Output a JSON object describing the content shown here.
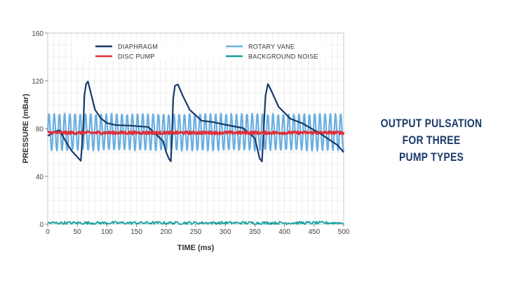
{
  "side_title": {
    "line1": "OUTPUT PULSATION",
    "line2": "FOR THREE",
    "line3": "PUMP TYPES"
  },
  "colors": {
    "diaphragm": "#173a6a",
    "rotary_vane": "#6aaee0",
    "disc_pump": "#e0303a",
    "background_noise": "#12a0a0",
    "title": "#1b3a6b",
    "grid": "#e2e2e2",
    "axis_text": "#444444"
  },
  "chart_data": {
    "type": "line",
    "xlabel": "TIME (ms)",
    "ylabel": "PRESSURE (mBar)",
    "xlim": [
      0,
      500
    ],
    "ylim": [
      0,
      160
    ],
    "xticks": [
      0,
      50,
      100,
      150,
      200,
      250,
      300,
      350,
      400,
      450,
      500
    ],
    "yticks": [
      0,
      40,
      80,
      120,
      160
    ],
    "grid": true,
    "legend_position": "top",
    "series": [
      {
        "name": "DIAPHRAGM",
        "color": "#173a6a",
        "x": [
          0,
          10,
          20,
          30,
          40,
          50,
          56,
          60,
          62,
          65,
          68,
          72,
          80,
          90,
          100,
          115,
          140,
          170,
          195,
          200,
          205,
          208,
          210,
          212,
          215,
          220,
          228,
          240,
          260,
          280,
          300,
          330,
          350,
          358,
          362,
          365,
          368,
          372,
          378,
          390,
          410,
          430,
          460,
          490,
          500
        ],
        "values": [
          74,
          77,
          78,
          70,
          62,
          56,
          53,
          80,
          108,
          118,
          119,
          112,
          96,
          88,
          85,
          83,
          82,
          81,
          70,
          60,
          55,
          53,
          75,
          105,
          116,
          117,
          108,
          95,
          87,
          85,
          83,
          80,
          72,
          55,
          53,
          80,
          108,
          117,
          112,
          98,
          88,
          84,
          76,
          66,
          60
        ]
      },
      {
        "name": "ROTARY VANE",
        "color": "#6aaee0",
        "center": 77,
        "amplitude": 15,
        "period_ms": 8.8
      },
      {
        "name": "DISC PUMP",
        "color": "#e0303a",
        "center": 76.5,
        "noise": 1.2
      },
      {
        "name": "BACKGROUND NOISE",
        "color": "#12a0a0",
        "center": 1,
        "noise": 1.2
      }
    ]
  }
}
